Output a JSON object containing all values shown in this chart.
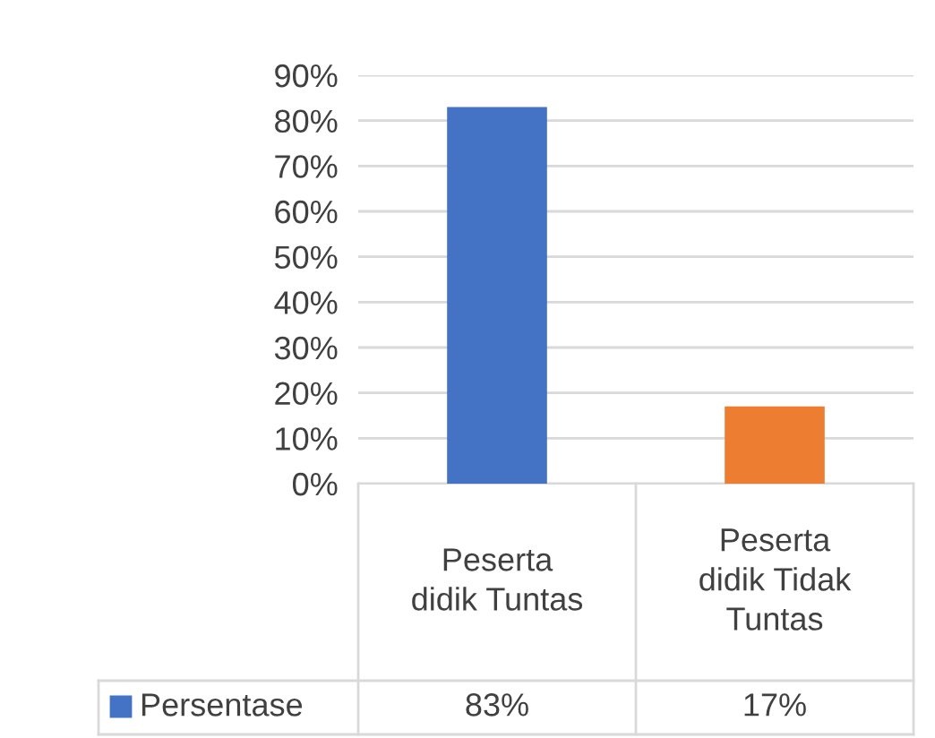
{
  "chart_data": {
    "type": "bar",
    "categories": [
      "Peserta\ndidik Tuntas",
      "Peserta\ndidik Tidak\nTuntas"
    ],
    "series": [
      {
        "name": "Persentase",
        "colors": [
          "#4472c4",
          "#ed7d31"
        ],
        "values": [
          83,
          17
        ],
        "value_labels": [
          "83%",
          "17%"
        ]
      }
    ],
    "ylim": [
      0,
      90
    ],
    "yticks": [
      {
        "value": 0,
        "label": "0%"
      },
      {
        "value": 10,
        "label": "10%"
      },
      {
        "value": 20,
        "label": "20%"
      },
      {
        "value": 30,
        "label": "30%"
      },
      {
        "value": 40,
        "label": "40%"
      },
      {
        "value": 50,
        "label": "50%"
      },
      {
        "value": 60,
        "label": "60%"
      },
      {
        "value": 70,
        "label": "70%"
      },
      {
        "value": 80,
        "label": "80%"
      },
      {
        "value": 90,
        "label": "90%"
      }
    ],
    "grid": "y"
  }
}
